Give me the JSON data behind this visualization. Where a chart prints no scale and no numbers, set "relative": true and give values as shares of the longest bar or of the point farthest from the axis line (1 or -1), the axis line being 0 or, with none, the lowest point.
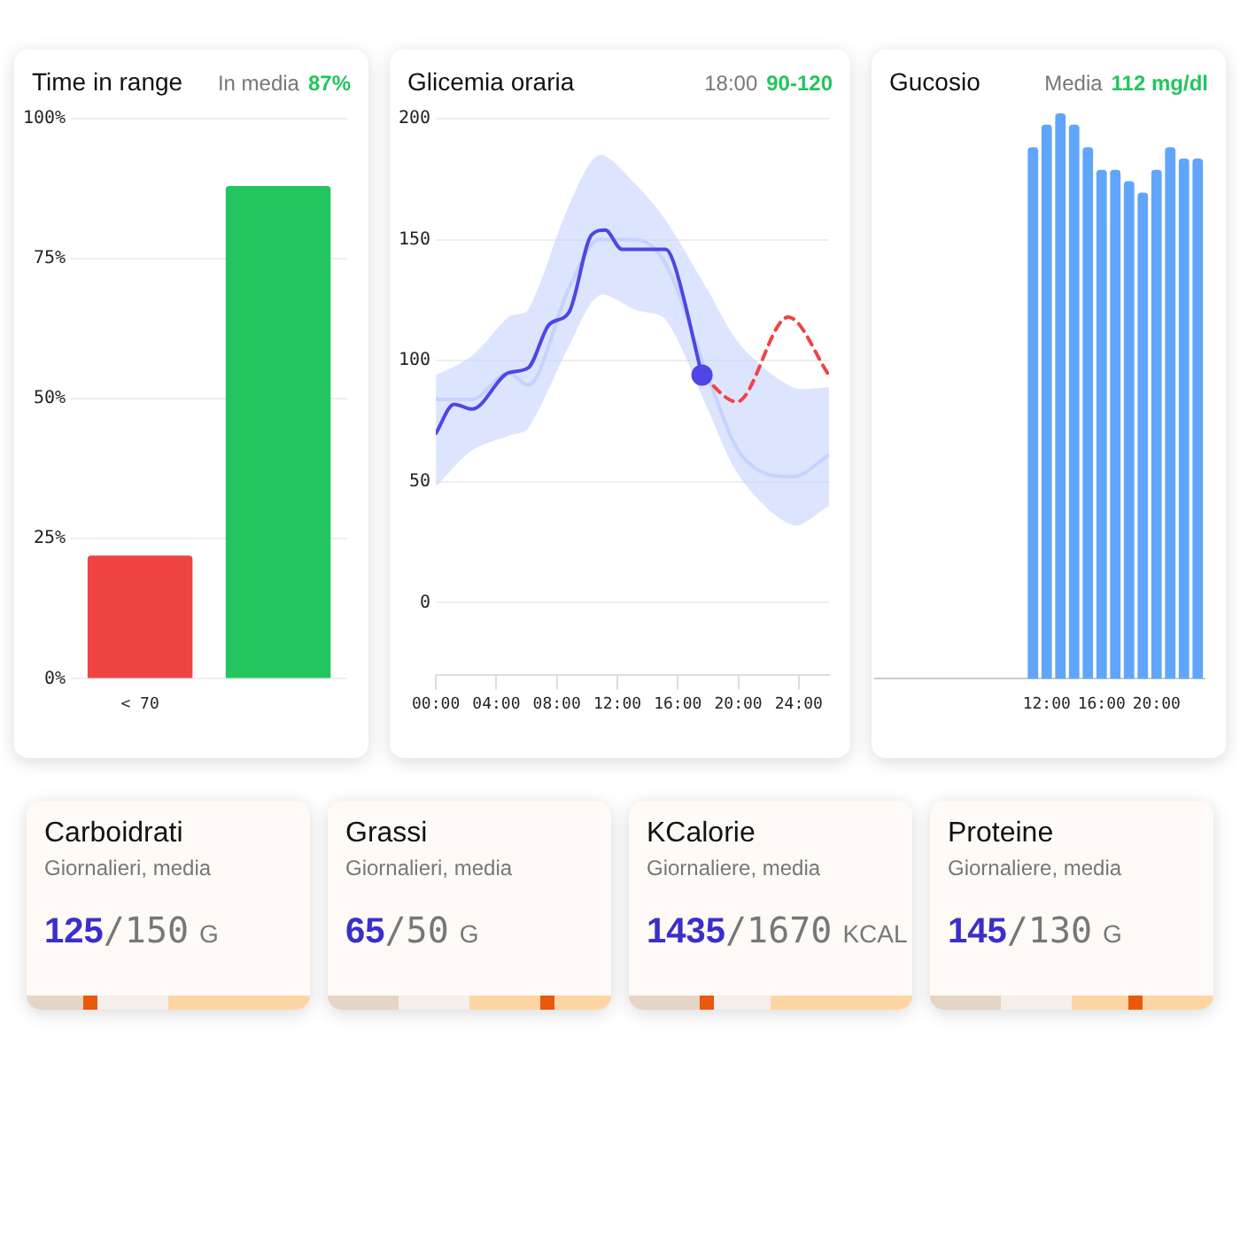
{
  "chart_data": [
    {
      "type": "bar",
      "title": "Time in range",
      "annotations": [
        "In media",
        "87%"
      ],
      "categories": [
        "< 70",
        null
      ],
      "values": [
        22,
        88
      ],
      "colors": [
        "#ef4444",
        "#22c55e"
      ],
      "ylim": [
        0,
        100
      ],
      "yticks": [
        {
          "value": 0,
          "label": "0%"
        },
        {
          "value": 25,
          "label": "25%"
        },
        {
          "value": 50,
          "label": "50%"
        },
        {
          "value": 75,
          "label": "75%"
        },
        {
          "value": 100,
          "label": "100%"
        }
      ],
      "grid": "y"
    },
    {
      "type": "line",
      "title": "Glicemia oraria",
      "annotations": [
        "18:00",
        "90-120"
      ],
      "xlim": [
        0,
        26
      ],
      "ylim": [
        -30,
        200
      ],
      "xticks": [
        {
          "value": 0,
          "label": "00:00"
        },
        {
          "value": 4,
          "label": "04:00"
        },
        {
          "value": 8,
          "label": "08:00"
        },
        {
          "value": 12,
          "label": "12:00"
        },
        {
          "value": 16,
          "label": "16:00"
        },
        {
          "value": 20,
          "label": "20:00"
        },
        {
          "value": 24,
          "label": "24:00"
        }
      ],
      "yticks": [
        0,
        50,
        100,
        150,
        200
      ],
      "grid": "y",
      "series": [
        {
          "color": "#c7d2fe",
          "x": [
            0,
            2.4,
            4.8,
            6.1,
            8.8,
            10.8,
            13.2,
            15.2,
            17.9,
            20.2,
            23.6,
            26
          ],
          "values": [
            84,
            84,
            95,
            90,
            130,
            150,
            150,
            140,
            95,
            61,
            52,
            61
          ],
          "lower": [
            48,
            63,
            69,
            72,
            106,
            127,
            121,
            117,
            81,
            51,
            32,
            40
          ],
          "upper": [
            94,
            102,
            118,
            121,
            164,
            185,
            173,
            158,
            130,
            106,
            89,
            89
          ]
        },
        {
          "color": "#4f46e5",
          "x": [
            0,
            1.2,
            2.4,
            4.8,
            6.1,
            7.5,
            8.8,
            10.3,
            11.2,
            12.3,
            15.2,
            15.7,
            17.6
          ],
          "values": [
            70,
            82,
            80,
            95,
            97,
            115,
            120,
            152,
            154,
            146,
            146,
            141,
            94
          ]
        },
        {
          "color": "#ef4444",
          "line_style": "dashed",
          "x": [
            17.6,
            19.9,
            23.3,
            26
          ],
          "values": [
            94,
            83,
            118,
            94
          ]
        },
        {
          "type": "scatter",
          "marker": "circle",
          "color": "#4f46e5",
          "x": [
            17.6
          ],
          "values": [
            94
          ]
        }
      ]
    },
    {
      "type": "bar",
      "title": "Gucosio",
      "annotations": [
        "Media",
        "112 mg/dl"
      ],
      "relative": true,
      "color": "#60a5fa",
      "categories": [
        null,
        null,
        null,
        null,
        null,
        null,
        null,
        null,
        null,
        null,
        null,
        null,
        "12:00",
        null,
        null,
        null,
        "16:00",
        null,
        null,
        null,
        "20:00",
        null,
        null,
        null
      ],
      "values": [
        null,
        null,
        null,
        null,
        null,
        null,
        null,
        null,
        null,
        null,
        null,
        0.94,
        0.98,
        1,
        0.98,
        0.94,
        0.9,
        0.9,
        0.88,
        0.86,
        0.9,
        0.94,
        0.92,
        0.92
      ]
    },
    {
      "type": "other",
      "title": "Carboidrati",
      "subtitle": "Giornalieri, media",
      "annotations": [
        "125",
        "/150",
        "G"
      ]
    },
    {
      "type": "other",
      "title": "Grassi",
      "subtitle": "Giornalieri, media",
      "annotations": [
        "65",
        "/50",
        "G"
      ]
    },
    {
      "type": "other",
      "title": "KCalorie",
      "subtitle": "Giornaliere, media",
      "annotations": [
        "1435",
        "/1670",
        "KCAL"
      ]
    },
    {
      "type": "other",
      "title": "Proteine",
      "subtitle": "Giornaliere, media",
      "annotations": [
        "145",
        "/130",
        "G"
      ]
    }
  ]
}
